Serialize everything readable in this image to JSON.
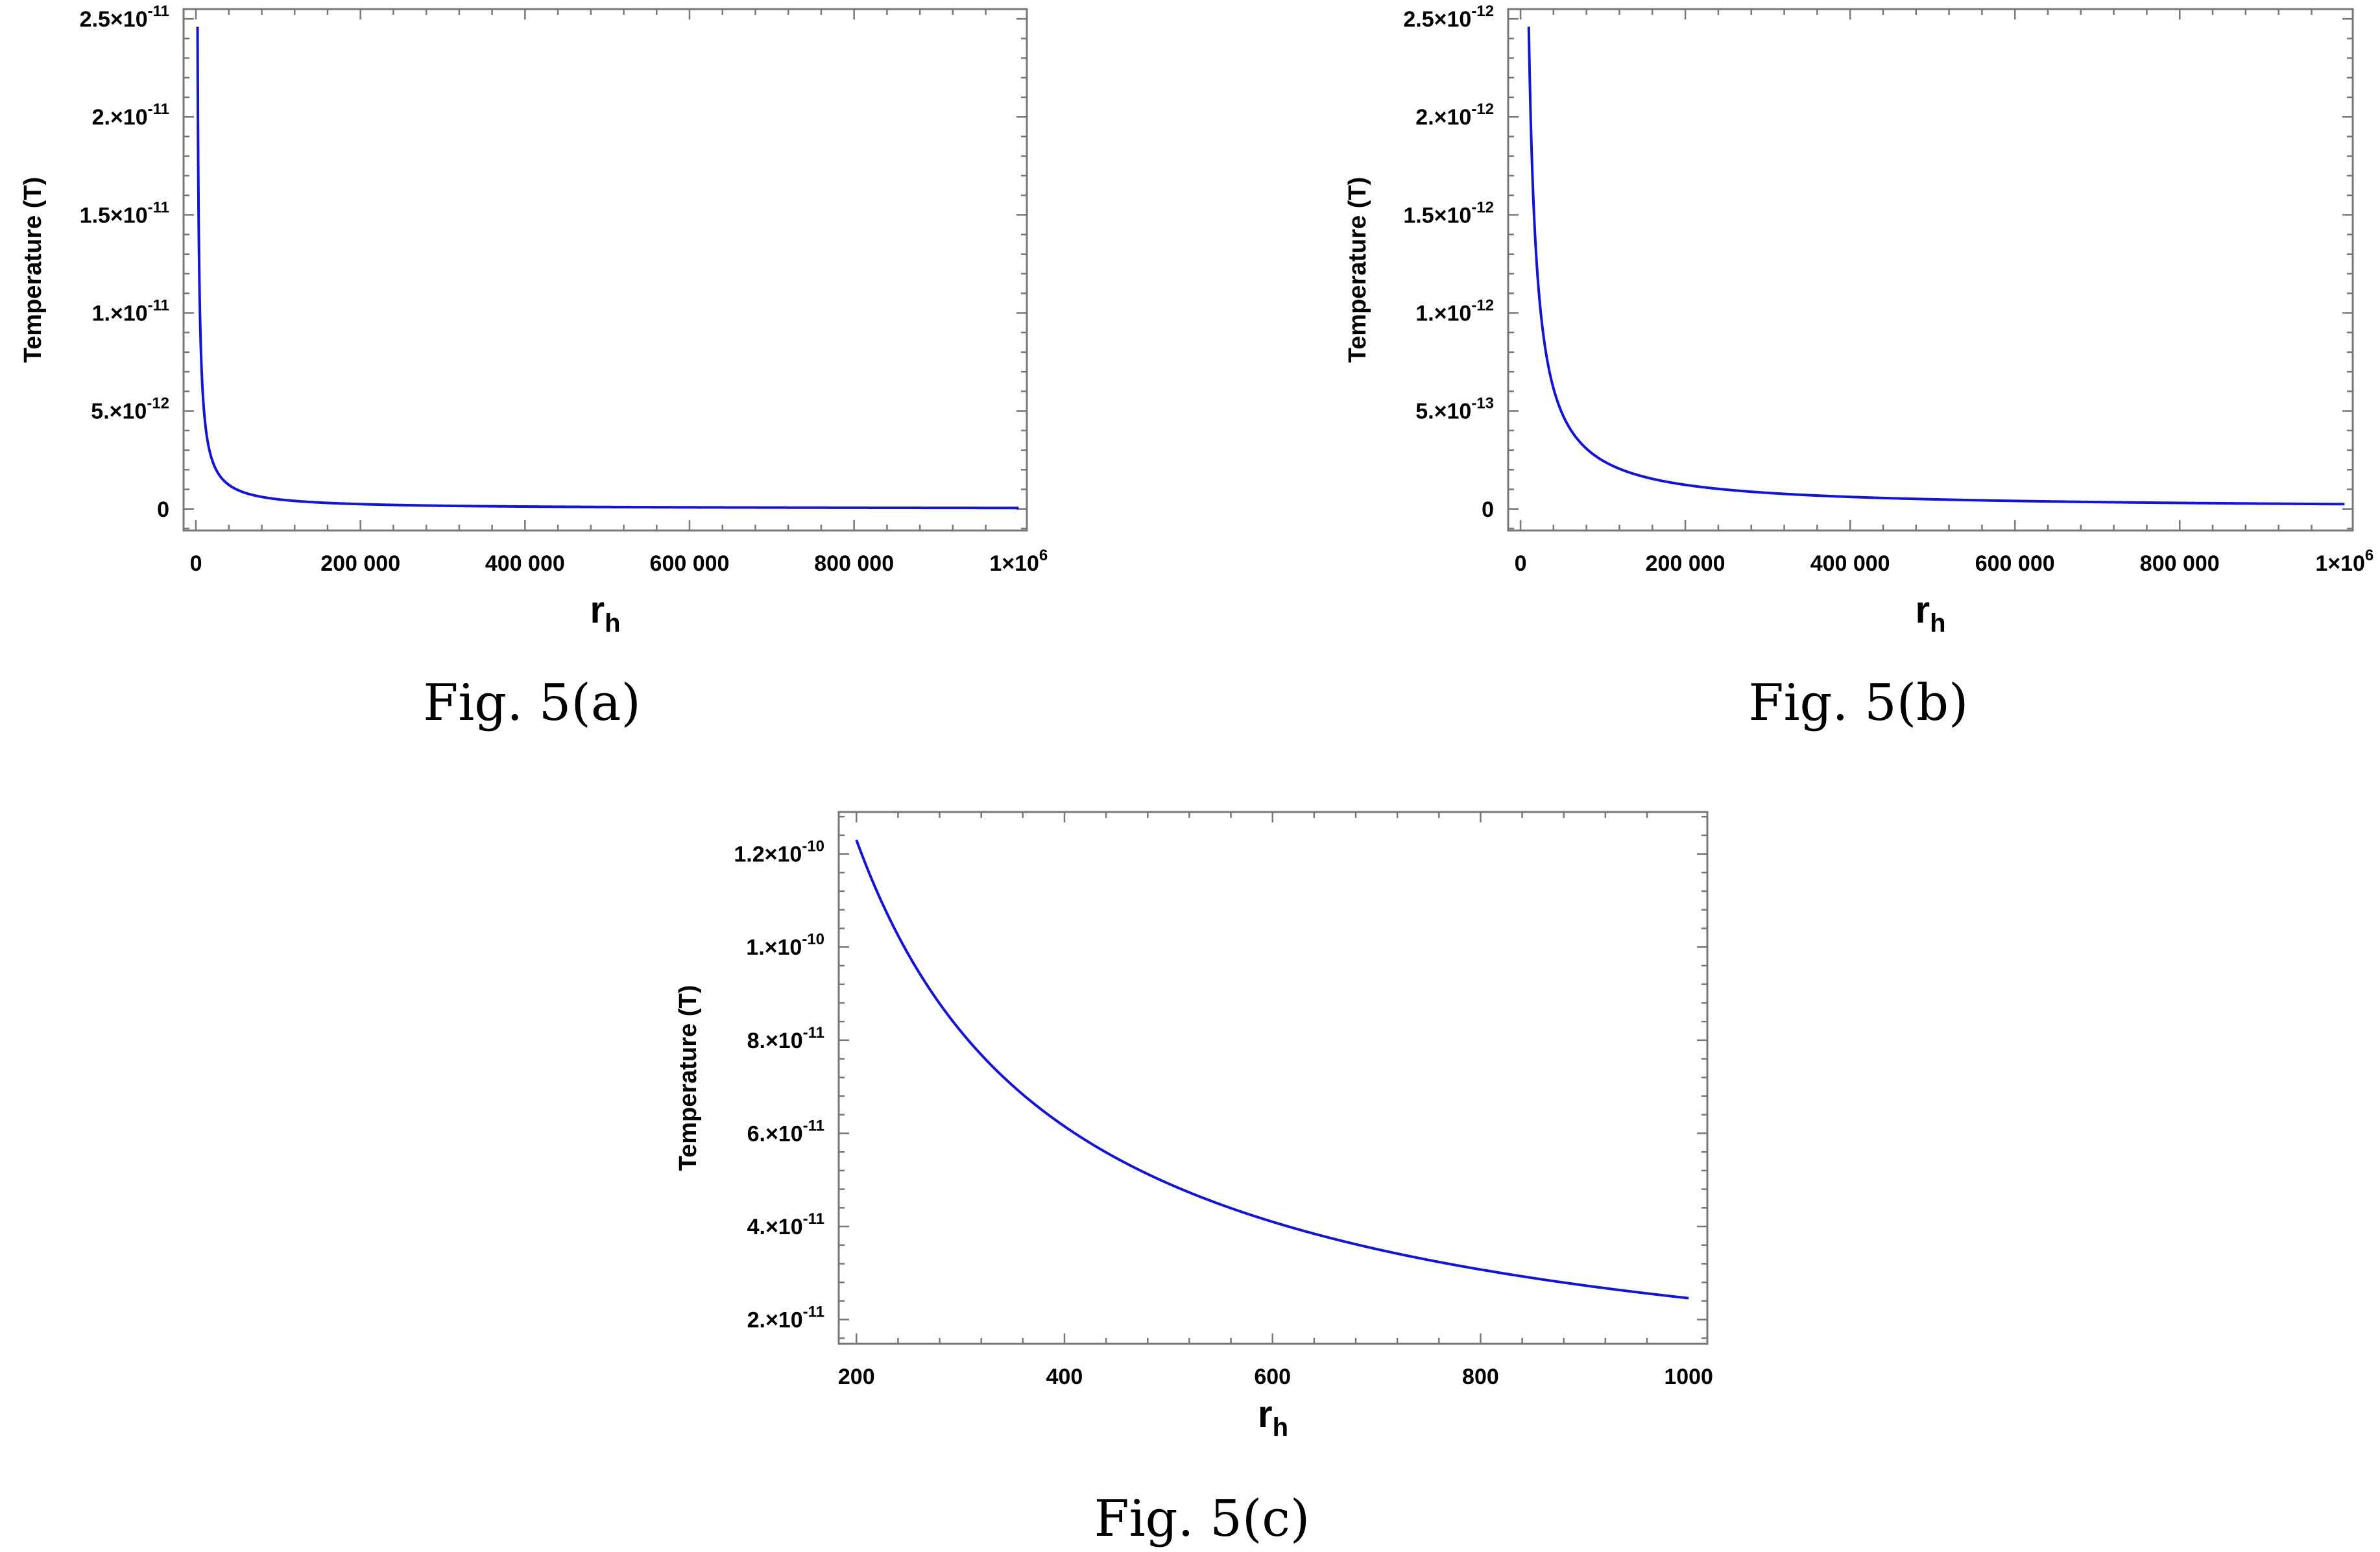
{
  "chart_data": [
    {
      "type": "line",
      "caption": "Fig. 5(a)",
      "xlabel": "r",
      "xlabel_sub": "h",
      "ylabel": "Temperature (T)",
      "xlim": [
        -15000,
        1010000
      ],
      "ylim": [
        -1.1e-12,
        2.55e-11
      ],
      "x_ticks": [
        {
          "value": 0,
          "text": "0"
        },
        {
          "value": 200000,
          "text": "200 000"
        },
        {
          "value": 400000,
          "text": "400 000"
        },
        {
          "value": 600000,
          "text": "600 000"
        },
        {
          "value": 800000,
          "text": "800 000"
        },
        {
          "value": 1000000,
          "text": "1×10",
          "exp": "6"
        }
      ],
      "y_ticks": [
        {
          "value": 0,
          "text": "0"
        },
        {
          "value": 5e-12,
          "text": "5.×10",
          "exp": "-12"
        },
        {
          "value": 1e-11,
          "text": "1.×10",
          "exp": "-11"
        },
        {
          "value": 1.5e-11,
          "text": "1.5×10",
          "exp": "-11"
        },
        {
          "value": 2e-11,
          "text": "2.×10",
          "exp": "-11"
        },
        {
          "value": 2.5e-11,
          "text": "2.5×10",
          "exp": "-11"
        }
      ],
      "series": [
        {
          "color": "#1414d2",
          "x_range": [
            2000,
            1000000
          ],
          "y_start": 2.46e-11,
          "y_end": 4.9e-14,
          "falloff": "1/x"
        }
      ]
    },
    {
      "type": "line",
      "caption": "Fig. 5(b)",
      "xlabel": "r",
      "xlabel_sub": "h",
      "ylabel": "Temperature (T)",
      "xlim": [
        -15000,
        1010000
      ],
      "ylim": [
        -1.1e-13,
        2.55e-12
      ],
      "x_ticks": [
        {
          "value": 0,
          "text": "0"
        },
        {
          "value": 200000,
          "text": "200 000"
        },
        {
          "value": 400000,
          "text": "400 000"
        },
        {
          "value": 600000,
          "text": "600 000"
        },
        {
          "value": 800000,
          "text": "800 000"
        },
        {
          "value": 1000000,
          "text": "1×10",
          "exp": "6"
        }
      ],
      "y_ticks": [
        {
          "value": 0,
          "text": "0"
        },
        {
          "value": 5e-13,
          "text": "5.×10",
          "exp": "-13"
        },
        {
          "value": 1e-12,
          "text": "1.×10",
          "exp": "-12"
        },
        {
          "value": 1.5e-12,
          "text": "1.5×10",
          "exp": "-12"
        },
        {
          "value": 2e-12,
          "text": "2.×10",
          "exp": "-12"
        },
        {
          "value": 2.5e-12,
          "text": "2.5×10",
          "exp": "-12"
        }
      ],
      "series": [
        {
          "color": "#1414d2",
          "x_range": [
            10000,
            1000000
          ],
          "y_start": 2.46e-12,
          "y_end": 2.46e-14,
          "falloff": "1/x"
        }
      ]
    },
    {
      "type": "line",
      "caption": "Fig. 5(c)",
      "xlabel": "r",
      "xlabel_sub": "h",
      "ylabel": "Temperature (T)",
      "xlim": [
        183,
        1018
      ],
      "ylim": [
        1.48e-11,
        1.29e-10
      ],
      "x_ticks": [
        {
          "value": 200,
          "text": "200"
        },
        {
          "value": 400,
          "text": "400"
        },
        {
          "value": 600,
          "text": "600"
        },
        {
          "value": 800,
          "text": "800"
        },
        {
          "value": 1000,
          "text": "1000"
        }
      ],
      "y_ticks": [
        {
          "value": 2e-11,
          "text": "2.×10",
          "exp": "-11"
        },
        {
          "value": 4e-11,
          "text": "4.×10",
          "exp": "-11"
        },
        {
          "value": 6e-11,
          "text": "6.×10",
          "exp": "-11"
        },
        {
          "value": 8e-11,
          "text": "8.×10",
          "exp": "-11"
        },
        {
          "value": 1e-10,
          "text": "1.×10",
          "exp": "-10"
        },
        {
          "value": 1.2e-10,
          "text": "1.2×10",
          "exp": "-10"
        }
      ],
      "series": [
        {
          "color": "#1414d2",
          "x_range": [
            200,
            1000
          ],
          "y_start": 1.23e-10,
          "y_end": 2.46e-11,
          "falloff": "1/x"
        }
      ]
    }
  ]
}
